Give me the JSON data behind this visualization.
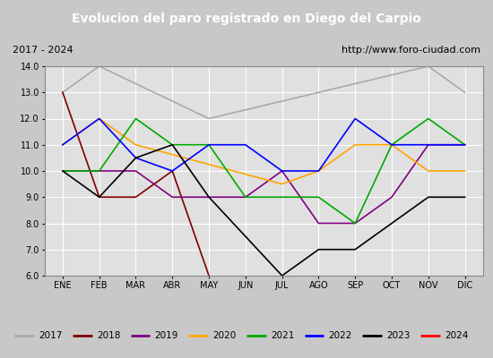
{
  "title": "Evolucion del paro registrado en Diego del Carpio",
  "subtitle_left": "2017 - 2024",
  "subtitle_right": "http://www.foro-ciudad.com",
  "xlabel_months": [
    "ENE",
    "FEB",
    "MAR",
    "ABR",
    "MAY",
    "JUN",
    "JUL",
    "AGO",
    "SEP",
    "OCT",
    "NOV",
    "DIC"
  ],
  "ylim": [
    6.0,
    14.0
  ],
  "yticks": [
    6.0,
    7.0,
    8.0,
    9.0,
    10.0,
    11.0,
    12.0,
    13.0,
    14.0
  ],
  "series": {
    "2017": {
      "color": "#aaaaaa",
      "values": [
        13.0,
        14.0,
        null,
        null,
        12.0,
        null,
        null,
        null,
        null,
        null,
        14.0,
        13.0
      ]
    },
    "2018": {
      "color": "#800000",
      "values": [
        13.0,
        9.0,
        9.0,
        10.0,
        6.0,
        null,
        null,
        null,
        null,
        null,
        null,
        null
      ]
    },
    "2019": {
      "color": "#800080",
      "values": [
        10.0,
        10.0,
        10.0,
        9.0,
        9.0,
        9.0,
        10.0,
        8.0,
        8.0,
        9.0,
        11.0,
        11.0
      ]
    },
    "2020": {
      "color": "#ffa500",
      "values": [
        11.0,
        12.0,
        11.0,
        null,
        null,
        null,
        9.5,
        10.0,
        11.0,
        11.0,
        10.0,
        10.0
      ]
    },
    "2021": {
      "color": "#00aa00",
      "values": [
        10.0,
        10.0,
        12.0,
        11.0,
        11.0,
        9.0,
        9.0,
        9.0,
        8.0,
        11.0,
        12.0,
        11.0
      ]
    },
    "2022": {
      "color": "#0000ff",
      "values": [
        11.0,
        12.0,
        10.5,
        10.0,
        11.0,
        11.0,
        10.0,
        10.0,
        12.0,
        11.0,
        11.0,
        11.0
      ]
    },
    "2023": {
      "color": "#000000",
      "values": [
        10.0,
        9.0,
        10.5,
        11.0,
        9.0,
        7.5,
        6.0,
        7.0,
        7.0,
        8.0,
        9.0,
        9.0
      ]
    },
    "2024": {
      "color": "#ff0000",
      "values": [
        null,
        null,
        null,
        null,
        6.0,
        null,
        null,
        null,
        null,
        null,
        null,
        null
      ]
    }
  },
  "bg_color": "#c8c8c8",
  "plot_bg_color": "#e0e0e0",
  "title_bg_color": "#4169a0",
  "title_text_color": "#ffffff",
  "grid_color": "#ffffff",
  "legend_bg_color": "#e8e8e8"
}
